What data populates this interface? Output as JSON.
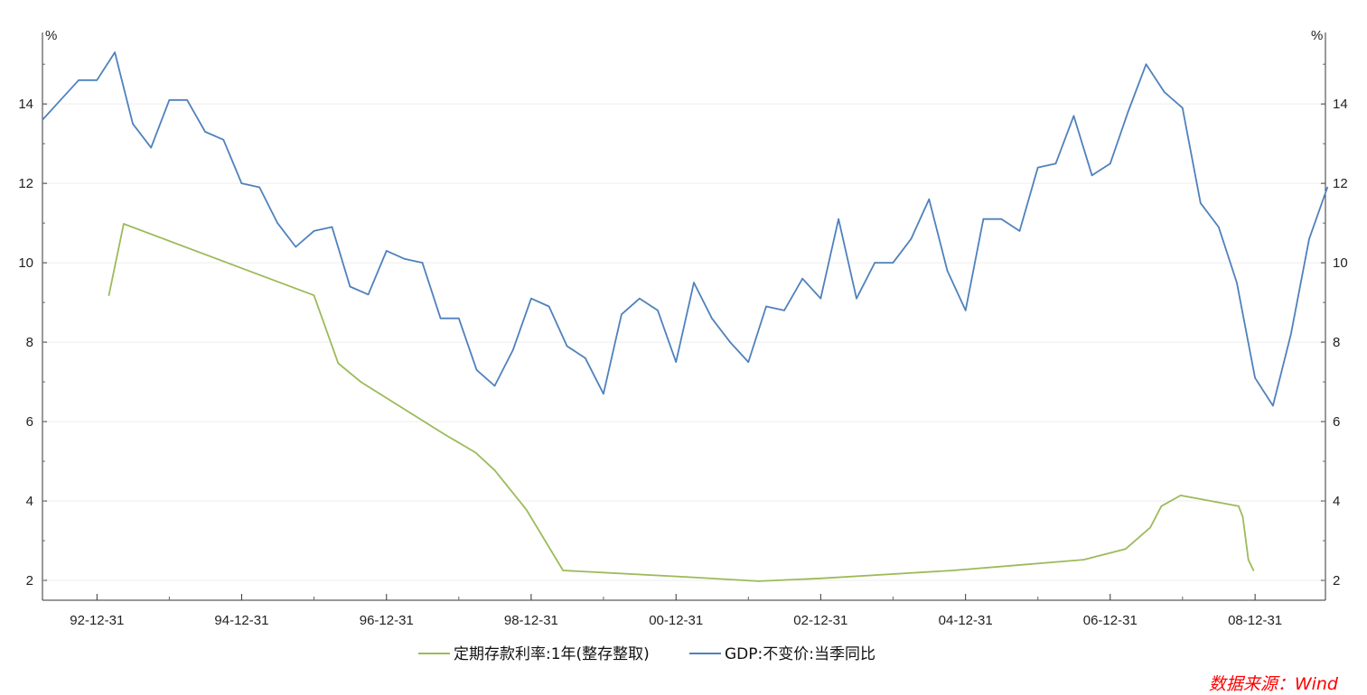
{
  "chart_data": {
    "type": "line",
    "y_unit_left": "%",
    "y_unit_right": "%",
    "x_range": [
      "1992-03-31",
      "2009-09-30"
    ],
    "ylim": [
      1.5,
      15.8
    ],
    "y_ticks": [
      2,
      4,
      6,
      8,
      10,
      12,
      14
    ],
    "x_tick_labels": [
      "92-12-31",
      "94-12-31",
      "96-12-31",
      "98-12-31",
      "00-12-31",
      "02-12-31",
      "04-12-31",
      "06-12-31",
      "08-12-31"
    ],
    "x_tick_dates": [
      "1992-12-31",
      "1994-12-31",
      "1996-12-31",
      "1998-12-31",
      "2000-12-31",
      "2002-12-31",
      "2004-12-31",
      "2006-12-31",
      "2008-12-31"
    ],
    "grid": true,
    "legend_position": "bottom",
    "series": [
      {
        "name": "定期存款利率:1年(整存整取)",
        "color": "#9bbb59",
        "points": [
          [
            "1993-03-01",
            9.18
          ],
          [
            "1993-05-15",
            10.98
          ],
          [
            "1995-12-31",
            9.18
          ],
          [
            "1996-05-01",
            7.47
          ],
          [
            "1996-08-23",
            7.0
          ],
          [
            "1997-10-23",
            5.67
          ],
          [
            "1998-03-25",
            5.22
          ],
          [
            "1998-07-01",
            4.77
          ],
          [
            "1998-12-07",
            3.78
          ],
          [
            "1999-06-10",
            2.25
          ],
          [
            "2000-12-31",
            2.1
          ],
          [
            "2002-02-21",
            1.98
          ],
          [
            "2002-12-31",
            2.05
          ],
          [
            "2004-10-29",
            2.25
          ],
          [
            "2006-08-19",
            2.52
          ],
          [
            "2007-03-18",
            2.79
          ],
          [
            "2007-07-21",
            3.33
          ],
          [
            "2007-09-15",
            3.87
          ],
          [
            "2007-12-21",
            4.14
          ],
          [
            "2008-10-09",
            3.87
          ],
          [
            "2008-10-30",
            3.6
          ],
          [
            "2008-11-27",
            2.52
          ],
          [
            "2008-12-23",
            2.25
          ]
        ]
      },
      {
        "name": "GDP:不变价:当季同比",
        "color": "#4f81bd",
        "points": [
          [
            "1992-03-31",
            13.6
          ],
          [
            "1992-06-30",
            14.1
          ],
          [
            "1992-09-30",
            14.6
          ],
          [
            "1992-12-31",
            14.6
          ],
          [
            "1993-03-31",
            15.3
          ],
          [
            "1993-06-30",
            13.5
          ],
          [
            "1993-09-30",
            12.9
          ],
          [
            "1993-12-31",
            14.1
          ],
          [
            "1994-03-31",
            14.1
          ],
          [
            "1994-06-30",
            13.3
          ],
          [
            "1994-09-30",
            13.1
          ],
          [
            "1994-12-31",
            12.0
          ],
          [
            "1995-03-31",
            11.9
          ],
          [
            "1995-06-30",
            11.0
          ],
          [
            "1995-09-30",
            10.4
          ],
          [
            "1995-12-31",
            10.8
          ],
          [
            "1996-03-31",
            10.9
          ],
          [
            "1996-06-30",
            9.4
          ],
          [
            "1996-09-30",
            9.2
          ],
          [
            "1996-12-31",
            10.3
          ],
          [
            "1997-03-31",
            10.1
          ],
          [
            "1997-06-30",
            10.0
          ],
          [
            "1997-09-30",
            8.6
          ],
          [
            "1997-12-31",
            8.6
          ],
          [
            "1998-03-31",
            7.3
          ],
          [
            "1998-06-30",
            6.9
          ],
          [
            "1998-09-30",
            7.8
          ],
          [
            "1998-12-31",
            9.1
          ],
          [
            "1999-03-31",
            8.9
          ],
          [
            "1999-06-30",
            7.9
          ],
          [
            "1999-09-30",
            7.6
          ],
          [
            "1999-12-31",
            6.7
          ],
          [
            "2000-03-31",
            8.7
          ],
          [
            "2000-06-30",
            9.1
          ],
          [
            "2000-09-30",
            8.8
          ],
          [
            "2000-12-31",
            7.5
          ],
          [
            "2001-03-31",
            9.5
          ],
          [
            "2001-06-30",
            8.6
          ],
          [
            "2001-09-30",
            8.0
          ],
          [
            "2001-12-31",
            7.5
          ],
          [
            "2002-03-31",
            8.9
          ],
          [
            "2002-06-30",
            8.8
          ],
          [
            "2002-09-30",
            9.6
          ],
          [
            "2002-12-31",
            9.1
          ],
          [
            "2003-03-31",
            11.1
          ],
          [
            "2003-06-30",
            9.1
          ],
          [
            "2003-09-30",
            10.0
          ],
          [
            "2003-12-31",
            10.0
          ],
          [
            "2004-03-31",
            10.6
          ],
          [
            "2004-06-30",
            11.6
          ],
          [
            "2004-09-30",
            9.8
          ],
          [
            "2004-12-31",
            8.8
          ],
          [
            "2005-03-31",
            11.1
          ],
          [
            "2005-06-30",
            11.1
          ],
          [
            "2005-09-30",
            10.8
          ],
          [
            "2005-12-31",
            12.4
          ],
          [
            "2006-03-31",
            12.5
          ],
          [
            "2006-06-30",
            13.7
          ],
          [
            "2006-09-30",
            12.2
          ],
          [
            "2006-12-31",
            12.5
          ],
          [
            "2007-03-31",
            13.8
          ],
          [
            "2007-06-30",
            15.0
          ],
          [
            "2007-09-30",
            14.3
          ],
          [
            "2007-12-31",
            13.9
          ],
          [
            "2008-03-31",
            11.5
          ],
          [
            "2008-06-30",
            10.9
          ],
          [
            "2008-09-30",
            9.5
          ],
          [
            "2008-12-31",
            7.1
          ],
          [
            "2009-03-31",
            6.4
          ],
          [
            "2009-06-30",
            8.2
          ],
          [
            "2009-09-30",
            10.6
          ],
          [
            "2009-12-31",
            11.9
          ]
        ]
      }
    ]
  },
  "source_label": "数据来源：Wind"
}
